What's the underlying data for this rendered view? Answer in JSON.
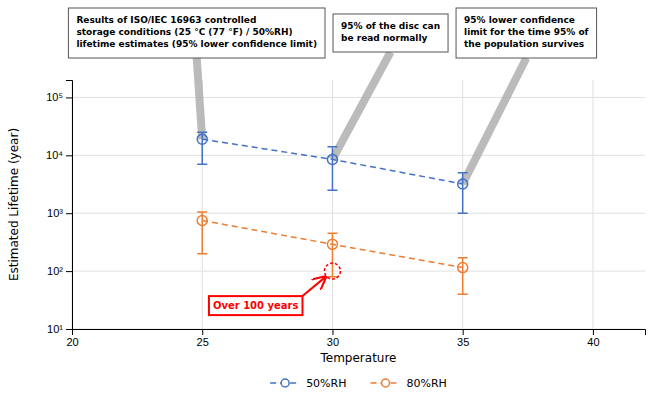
{
  "chart_data": {
    "type": "line",
    "x": [
      25,
      30,
      35
    ],
    "series": [
      {
        "name": "50%RH",
        "color": "#4472C4",
        "values": [
          19000,
          8500,
          3200
        ],
        "lower": [
          7000,
          2500,
          1000
        ],
        "upper": [
          25000,
          14000,
          5000
        ]
      },
      {
        "name": "80%RH",
        "color": "#ED7D31",
        "values": [
          750,
          290,
          115
        ],
        "lower": [
          200,
          80,
          40
        ],
        "upper": [
          1050,
          450,
          170
        ]
      }
    ],
    "marker": "open-circle",
    "line_style": "dashed",
    "xlabel": "Temperature",
    "ylabel": "Estimated Lifetime (year)",
    "xlim": [
      20,
      42
    ],
    "xticks": [
      20,
      25,
      30,
      35,
      40
    ],
    "ylim": [
      10,
      200000
    ],
    "yticks": [
      {
        "value": 10,
        "label": "10¹"
      },
      {
        "value": 100,
        "label": "10²"
      },
      {
        "value": 1000,
        "label": "10³"
      },
      {
        "value": 10000,
        "label": "10⁴"
      },
      {
        "value": 100000,
        "label": "10⁵"
      }
    ],
    "log": "y",
    "grid": true,
    "legend": "bottom",
    "annotations": [
      {
        "text": "Over 100 years",
        "x": 30,
        "y": 100,
        "color": "#FF0000"
      },
      {
        "text": "Results of ISO/IEC 16963 controlled\nstorage conditions (25 °C (77 °F) / 50%RH)\nlifetime estimates (95% lower confidence limit)",
        "x": 25,
        "y": 19000
      },
      {
        "text": "95% of the disc can\nbe read normally",
        "x": 30,
        "y": 8500
      },
      {
        "text": "95% lower confidence\nlimit for the time 95% of\nthe population survives",
        "x": 35,
        "y": 3200
      }
    ]
  }
}
